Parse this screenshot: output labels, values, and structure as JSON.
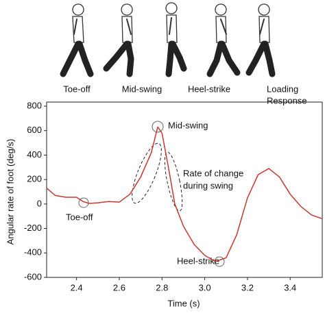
{
  "phases": [
    "Toe-off",
    "Mid-swing",
    "Heel-strike",
    [
      "Loading",
      "Response"
    ]
  ],
  "chart_data": {
    "type": "line",
    "x_label": "Time (s)",
    "y_label": "Angular rate of foot (deg/s)",
    "annotations": [
      "Toe-off",
      "Mid-swing",
      [
        "Rate of change",
        "during swing"
      ],
      "Heel-strike"
    ],
    "x": [
      2.26,
      2.3,
      2.35,
      2.4,
      2.43,
      2.46,
      2.5,
      2.55,
      2.6,
      2.65,
      2.7,
      2.75,
      2.78,
      2.8,
      2.83,
      2.86,
      2.9,
      2.95,
      3.0,
      3.05,
      3.1,
      3.15,
      3.2,
      3.25,
      3.3,
      3.35,
      3.4,
      3.45,
      3.5,
      3.55
    ],
    "series": [
      {
        "color": "#c8372d",
        "values": [
          130,
          70,
          55,
          55,
          20,
          5,
          10,
          20,
          15,
          80,
          220,
          420,
          630,
          580,
          300,
          0,
          -180,
          -330,
          -420,
          -470,
          -440,
          -250,
          50,
          240,
          290,
          220,
          80,
          -20,
          -90,
          -120
        ]
      }
    ],
    "xlim": [
      2.26,
      3.55
    ],
    "xticks": [
      2.4,
      2.6,
      2.8,
      {
        "value": 3,
        "label": "3.0"
      },
      3.2,
      3.4
    ],
    "ylim": [
      -600,
      800
    ],
    "yticks": [
      -600,
      -400,
      -200,
      0,
      200,
      400,
      600,
      800
    ]
  }
}
